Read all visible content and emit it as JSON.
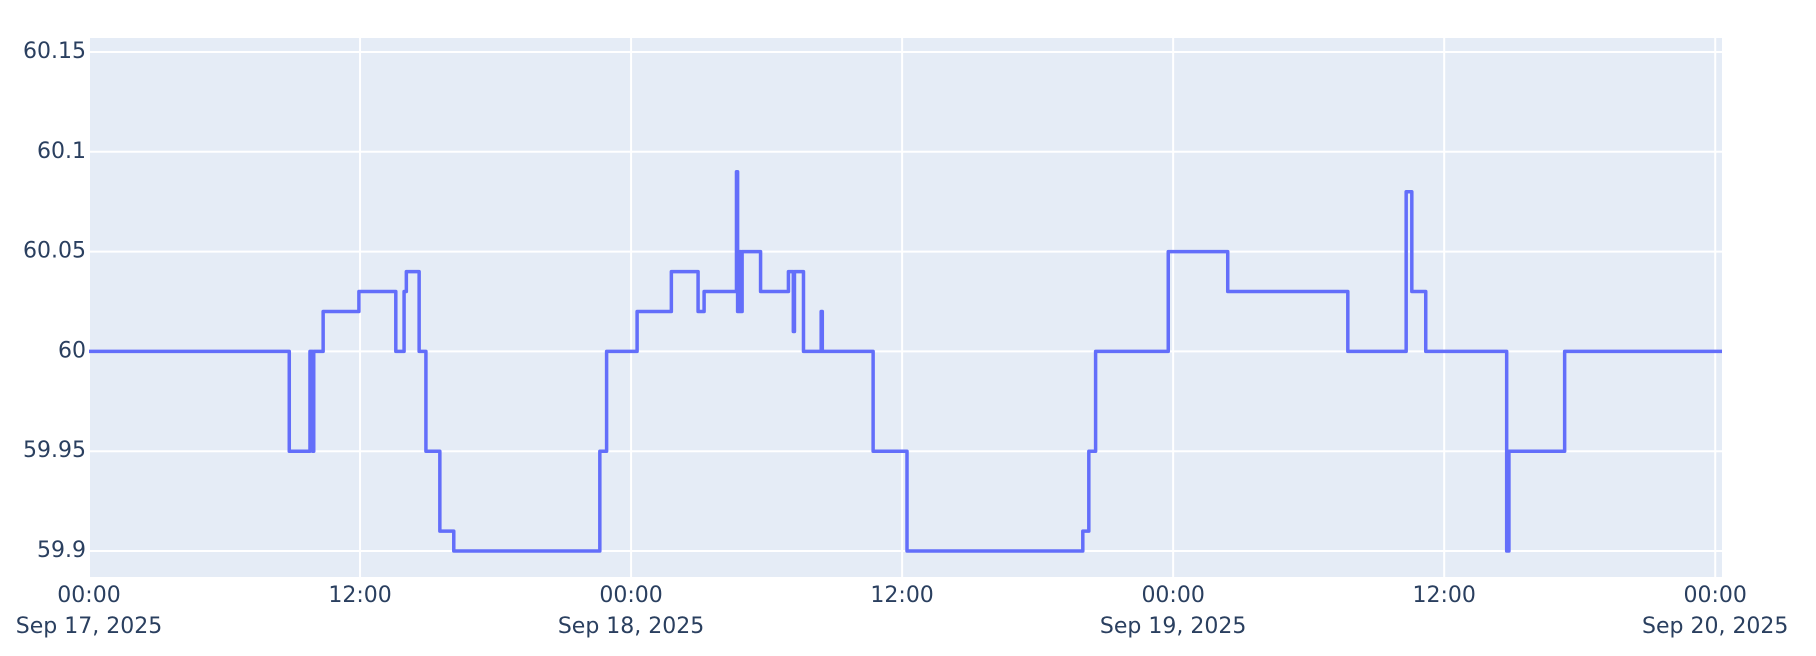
{
  "chart_data": {
    "type": "line",
    "line_shape": "hv",
    "grid": true,
    "x": [
      "2025-09-17 00:00",
      "2025-09-17 08:52",
      "2025-09-17 09:47",
      "2025-09-17 09:54",
      "2025-09-17 09:57",
      "2025-09-17 10:22",
      "2025-09-17 11:57",
      "2025-09-17 13:35",
      "2025-09-17 13:57",
      "2025-09-17 14:03",
      "2025-09-17 14:37",
      "2025-09-17 14:55",
      "2025-09-17 15:32",
      "2025-09-17 16:09",
      "2025-09-17 22:37",
      "2025-09-17 22:55",
      "2025-09-18 00:16",
      "2025-09-18 01:47",
      "2025-09-18 02:58",
      "2025-09-18 03:14",
      "2025-09-18 04:40",
      "2025-09-18 04:43",
      "2025-09-18 04:49",
      "2025-09-18 04:52",
      "2025-09-18 04:55",
      "2025-09-18 05:44",
      "2025-09-18 06:58",
      "2025-09-18 07:11",
      "2025-09-18 07:14",
      "2025-09-18 07:38",
      "2025-09-18 08:25",
      "2025-09-18 08:28",
      "2025-09-18 10:43",
      "2025-09-18 12:13",
      "2025-09-18 20:00",
      "2025-09-18 20:16",
      "2025-09-18 20:34",
      "2025-09-18 23:47",
      "2025-09-19 02:25",
      "2025-09-19 07:44",
      "2025-09-19 10:19",
      "2025-09-19 10:34",
      "2025-09-19 11:11",
      "2025-09-19 14:46",
      "2025-09-19 14:52",
      "2025-09-19 17:20",
      "2025-09-20 00:18"
    ],
    "series": [
      {
        "color": "#636efa",
        "values": [
          60,
          59.95,
          60,
          59.95,
          60,
          60.02,
          60.03,
          60,
          60.03,
          60.04,
          60,
          59.95,
          59.91,
          59.9,
          59.95,
          60,
          60.02,
          60.04,
          60.02,
          60.03,
          60.09,
          60.02,
          60.05,
          60.02,
          60.05,
          60.03,
          60.04,
          60.01,
          60.04,
          60,
          60.02,
          60,
          59.95,
          59.9,
          59.91,
          59.95,
          60,
          60.05,
          60.03,
          60,
          60.08,
          60.03,
          60,
          59.9,
          59.95,
          60,
          60
        ]
      }
    ],
    "xlim": [
      "2025-09-17 00:00",
      "2025-09-20 00:18"
    ],
    "xticks": [
      {
        "value": "2025-09-17 00:00",
        "label": [
          "00:00",
          "Sep 17, 2025"
        ]
      },
      {
        "value": "2025-09-17 12:00",
        "label": [
          "12:00"
        ]
      },
      {
        "value": "2025-09-18 00:00",
        "label": [
          "00:00",
          "Sep 18, 2025"
        ]
      },
      {
        "value": "2025-09-18 12:00",
        "label": [
          "12:00"
        ]
      },
      {
        "value": "2025-09-19 00:00",
        "label": [
          "00:00",
          "Sep 19, 2025"
        ]
      },
      {
        "value": "2025-09-19 12:00",
        "label": [
          "12:00"
        ]
      },
      {
        "value": "2025-09-20 00:00",
        "label": [
          "00:00",
          "Sep 20, 2025"
        ]
      }
    ],
    "ylim": [
      59.887,
      60.157
    ],
    "yticks": [
      59.9,
      59.95,
      60,
      60.05,
      60.1,
      60.15
    ]
  }
}
